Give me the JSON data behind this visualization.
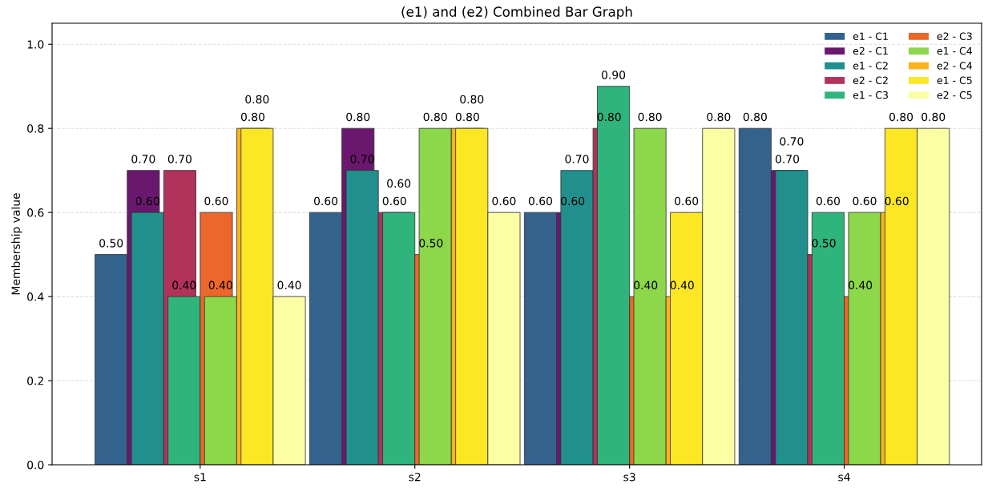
{
  "chart_data": {
    "type": "bar",
    "title": "(e1) and (e2) Combined Bar Graph",
    "ylabel": "Membership value",
    "categories": [
      "s1",
      "s2",
      "s3",
      "s4"
    ],
    "series": [
      {
        "name": "e1 - C1",
        "color": "#33638d",
        "values": [
          0.5,
          0.6,
          0.6,
          0.8
        ],
        "value_labels": [
          "0.50",
          "0.60",
          "0.60",
          "0.80"
        ]
      },
      {
        "name": "e2 - C1",
        "color": "#6a176e",
        "values": [
          0.7,
          0.8,
          0.6,
          0.7
        ],
        "value_labels": [
          "0.70",
          "0.80",
          "0.60",
          "0.70"
        ]
      },
      {
        "name": "e1 - C2",
        "color": "#21908d",
        "values": [
          0.6,
          0.7,
          0.7,
          0.7
        ],
        "value_labels": [
          "0.60",
          "0.70",
          "0.70",
          "0.70"
        ]
      },
      {
        "name": "e2 - C2",
        "color": "#b1325a",
        "values": [
          0.7,
          0.6,
          0.8,
          0.5
        ],
        "value_labels": [
          "0.70",
          "0.60",
          "0.80",
          "0.50"
        ]
      },
      {
        "name": "e1 - C3",
        "color": "#2fb47c",
        "values": [
          0.4,
          0.6,
          0.9,
          0.6
        ],
        "value_labels": [
          "0.40",
          "0.60",
          "0.90",
          "0.60"
        ]
      },
      {
        "name": "e2 - C3",
        "color": "#ec672a",
        "values": [
          0.6,
          0.5,
          0.4,
          0.4
        ],
        "value_labels": [
          "0.60",
          "0.50",
          "0.40",
          "0.40"
        ]
      },
      {
        "name": "e1 - C4",
        "color": "#8cd74a",
        "values": [
          0.4,
          0.8,
          0.8,
          0.6
        ],
        "value_labels": [
          "0.40",
          "0.80",
          "0.80",
          "0.60"
        ]
      },
      {
        "name": "e2 - C4",
        "color": "#fbb31b",
        "values": [
          0.8,
          0.8,
          0.4,
          0.6
        ],
        "value_labels": [
          "0.80",
          "0.80",
          "0.40",
          "0.60"
        ]
      },
      {
        "name": "e1 - C5",
        "color": "#fde725",
        "values": [
          0.8,
          0.8,
          0.6,
          0.8
        ],
        "value_labels": [
          "0.80",
          "0.80",
          "0.60",
          "0.80"
        ]
      },
      {
        "name": "e2 - C5",
        "color": "#fcfea4",
        "values": [
          0.4,
          0.6,
          0.8,
          0.8
        ],
        "value_labels": [
          "0.40",
          "0.60",
          "0.80",
          "0.80"
        ]
      }
    ],
    "ylim": [
      0,
      1.05
    ],
    "yticks": [
      {
        "value": 0,
        "label": "0.0"
      },
      {
        "value": 0.2,
        "label": "0.2"
      },
      {
        "value": 0.4,
        "label": "0.4"
      },
      {
        "value": 0.6,
        "label": "0.6"
      },
      {
        "value": 0.8,
        "label": "0.8"
      },
      {
        "value": 1.0,
        "label": "1.0"
      }
    ],
    "grid": "y",
    "legend": "top right"
  }
}
